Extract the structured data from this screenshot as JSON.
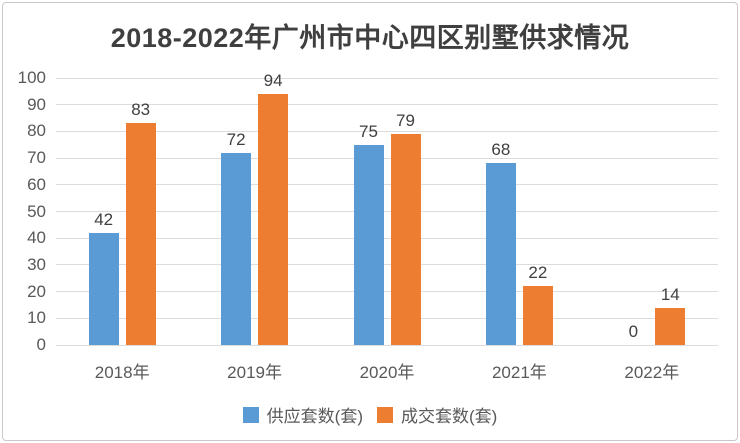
{
  "chart_data": {
    "type": "bar",
    "title": "2018-2022年广州市中心四区别墅供求情况",
    "categories": [
      "2018年",
      "2019年",
      "2020年",
      "2021年",
      "2022年"
    ],
    "series": [
      {
        "name": "供应套数(套)",
        "color": "#5B9BD5",
        "values": [
          42,
          72,
          75,
          68,
          0
        ]
      },
      {
        "name": "成交套数(套)",
        "color": "#ED7D31",
        "values": [
          83,
          94,
          79,
          22,
          14
        ]
      }
    ],
    "ylim": [
      0,
      100
    ],
    "yticks": [
      0,
      10,
      20,
      30,
      40,
      50,
      60,
      70,
      80,
      90,
      100
    ],
    "grid": true,
    "legend_position": "bottom",
    "data_labels": true,
    "colors": {
      "gridline": "#dcdcdc",
      "axis_label": "#595959",
      "data_label": "#404040",
      "title": "#3f3f3f",
      "frame_border": "#c9c9c9",
      "background": "#ffffff"
    }
  }
}
